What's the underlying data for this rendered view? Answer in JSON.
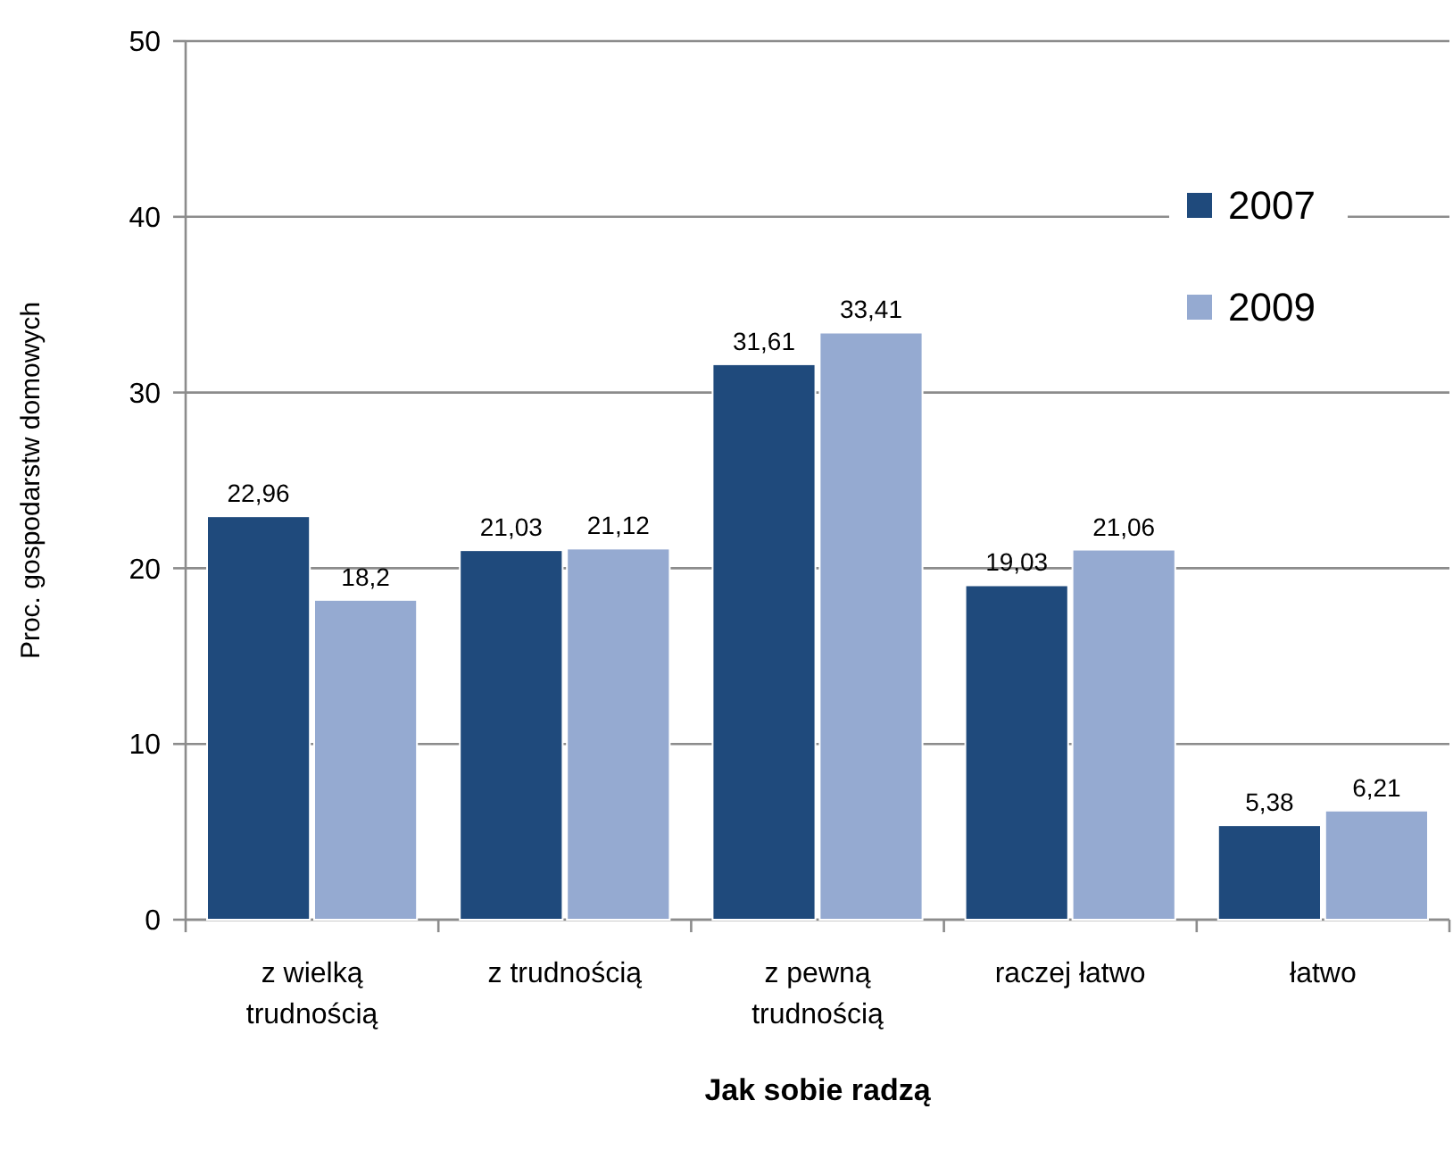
{
  "chart_data": {
    "type": "bar",
    "xlabel": "Jak sobie radzą",
    "ylabel": "Proc. gospodarstw domowych",
    "categories": [
      "z wielką trudnością",
      "z trudnością",
      "z pewną trudnością",
      "raczej łatwo",
      "łatwo"
    ],
    "series": [
      {
        "name": "2007",
        "color": "#1f4a7c",
        "values": [
          22.96,
          21.03,
          31.61,
          19.03,
          5.38
        ],
        "value_labels": [
          "22,96",
          "21,03",
          "31,61",
          "19,03",
          "5,38"
        ]
      },
      {
        "name": "2009",
        "color": "#95aad1",
        "values": [
          18.2,
          21.12,
          33.41,
          21.06,
          6.21
        ],
        "value_labels": [
          "18,2",
          "21,12",
          "33,41",
          "21,06",
          "6,21"
        ]
      }
    ],
    "ylim": [
      0,
      50
    ],
    "yticks": [
      0,
      10,
      20,
      30,
      40,
      50
    ],
    "grid": "y",
    "legend": "top right"
  }
}
